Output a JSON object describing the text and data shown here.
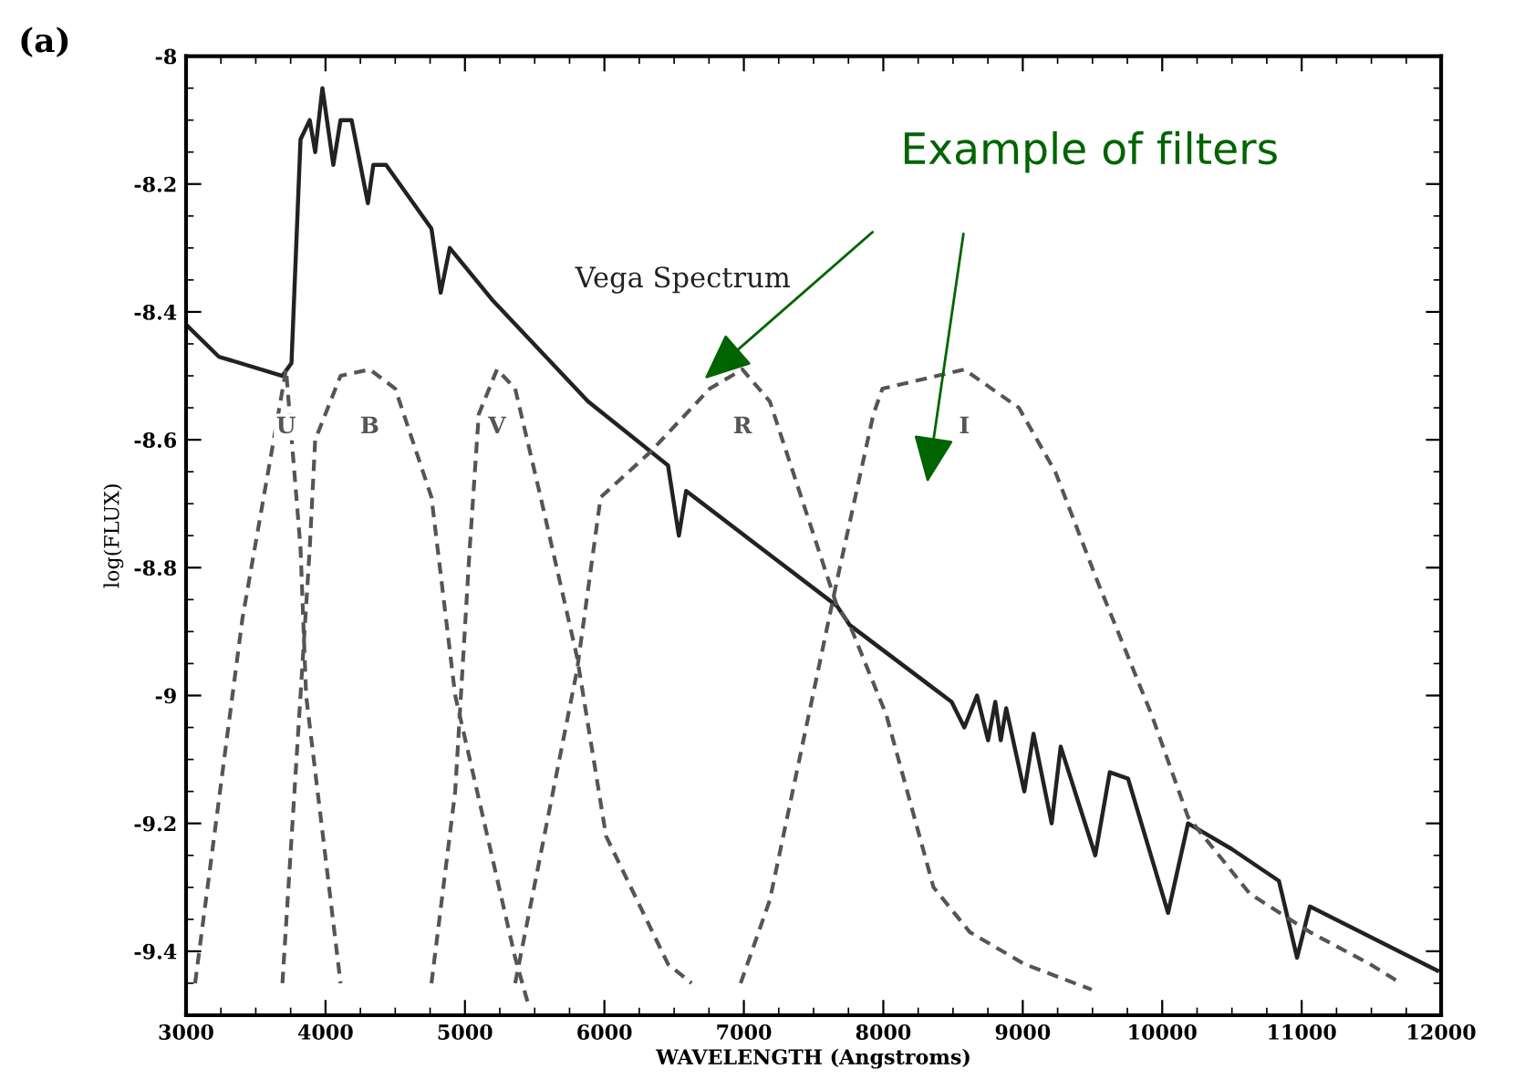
{
  "chart_data": {
    "type": "line",
    "xlabel": "WAVELENGTH (Angstroms)",
    "ylabel": "log(FLUX)",
    "annotations": [
      "(a)",
      "Example of filters"
    ],
    "xlim": [
      3000,
      12000
    ],
    "xticks": [
      3000,
      4000,
      5000,
      6000,
      7000,
      8000,
      9000,
      10000,
      11000,
      12000
    ],
    "ylim": [
      -9.5,
      -8
    ],
    "yticks": [
      -8,
      -8.2,
      -8.4,
      -8.6,
      -8.8,
      -9,
      -9.2,
      -9.4
    ],
    "grid": false,
    "legend": false,
    "marker": "none",
    "series": [
      {
        "name": "Vega Spectrum",
        "color": "#222222",
        "line_style": "solid",
        "x": [
          3000,
          3235,
          3691,
          3756,
          3821,
          3887,
          3926,
          3978,
          4017,
          4056,
          4108,
          4187,
          4304,
          4343,
          4434,
          4760,
          4826,
          4891,
          5191,
          5882,
          6456,
          6534,
          6586,
          7186,
          7668,
          7760,
          8490,
          8581,
          8672,
          8751,
          8803,
          8842,
          8881,
          9011,
          9077,
          9207,
          9272,
          9520,
          9624,
          9755,
          10042,
          10185,
          10498,
          10837,
          10967,
          11059,
          11972
        ],
        "values": [
          -8.42,
          -8.47,
          -8.5,
          -8.48,
          -8.13,
          -8.1,
          -8.15,
          -8.05,
          -8.11,
          -8.17,
          -8.1,
          -8.1,
          -8.23,
          -8.17,
          -8.17,
          -8.27,
          -8.37,
          -8.3,
          -8.38,
          -8.54,
          -8.64,
          -8.75,
          -8.68,
          -8.78,
          -8.86,
          -8.89,
          -9.01,
          -9.05,
          -9.0,
          -9.07,
          -9.01,
          -9.07,
          -9.02,
          -9.15,
          -9.06,
          -9.2,
          -9.08,
          -9.25,
          -9.12,
          -9.13,
          -9.34,
          -9.2,
          -9.24,
          -9.29,
          -9.41,
          -9.33,
          -9.43
        ]
      },
      {
        "name": "U",
        "color": "#555555",
        "line_style": "dashed",
        "x": [
          3065,
          3404,
          3717,
          3821,
          3861,
          4108
        ],
        "values": [
          -9.45,
          -8.88,
          -8.49,
          -8.77,
          -9.0,
          -9.45
        ]
      },
      {
        "name": "B",
        "color": "#555555",
        "line_style": "dashed",
        "x": [
          3691,
          3887,
          3926,
          4108,
          4317,
          4500,
          4760,
          4930,
          5360,
          5450
        ],
        "values": [
          -9.45,
          -8.77,
          -8.6,
          -8.5,
          -8.49,
          -8.52,
          -8.69,
          -9.0,
          -9.41,
          -9.48
        ]
      },
      {
        "name": "V",
        "color": "#555555",
        "line_style": "dashed",
        "x": [
          4760,
          4930,
          5034,
          5099,
          5230,
          5360,
          5543,
          5804,
          6012,
          6456,
          6625
        ],
        "values": [
          -9.45,
          -9.15,
          -8.77,
          -8.56,
          -8.49,
          -8.52,
          -8.69,
          -8.94,
          -9.22,
          -9.42,
          -9.45
        ]
      },
      {
        "name": "R",
        "color": "#555555",
        "line_style": "dashed",
        "x": [
          5360,
          5804,
          5973,
          6325,
          6756,
          6990,
          7186,
          7668,
          7760,
          8021,
          8360,
          8620,
          9011,
          9494
        ],
        "values": [
          -9.45,
          -8.96,
          -8.69,
          -8.62,
          -8.52,
          -8.49,
          -8.54,
          -8.86,
          -8.89,
          -9.03,
          -9.3,
          -9.37,
          -9.42,
          -9.46
        ]
      },
      {
        "name": "I",
        "color": "#555555",
        "line_style": "dashed",
        "x": [
          6977,
          7186,
          7668,
          7929,
          7994,
          8581,
          8972,
          9233,
          9533,
          9924,
          10185,
          10628,
          11059,
          11489,
          11711
        ],
        "values": [
          -9.45,
          -9.32,
          -8.82,
          -8.56,
          -8.52,
          -8.49,
          -8.55,
          -8.65,
          -8.82,
          -9.03,
          -9.19,
          -9.31,
          -9.37,
          -9.42,
          -9.45
        ]
      }
    ]
  }
}
